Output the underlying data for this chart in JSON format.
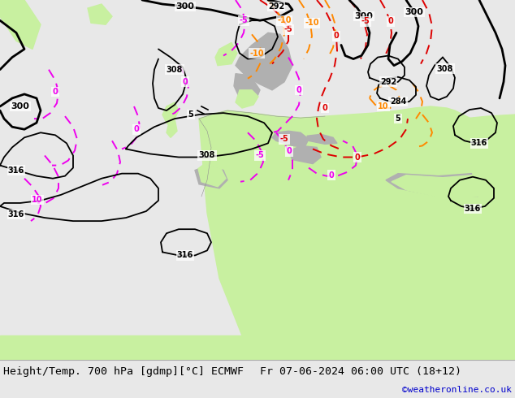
{
  "title_left": "Height/Temp. 700 hPa [gdmp][°C] ECMWF",
  "title_right": "Fr 07-06-2024 06:00 UTC (18+12)",
  "credit": "©weatheronline.co.uk",
  "sea_color": "#d8d8d8",
  "land_color": "#c8f0a0",
  "terrain_color": "#b0b0b0",
  "footer_bg": "#e8e8e8",
  "black_lw": 2.0,
  "thin_lw": 1.3,
  "dashed_lw": 1.4,
  "black": "#000000",
  "red": "#dd0000",
  "orange": "#ff8800",
  "magenta": "#ee00ee",
  "credit_color": "#0000cc",
  "footer_fontsize": 9,
  "label_fs": 8
}
